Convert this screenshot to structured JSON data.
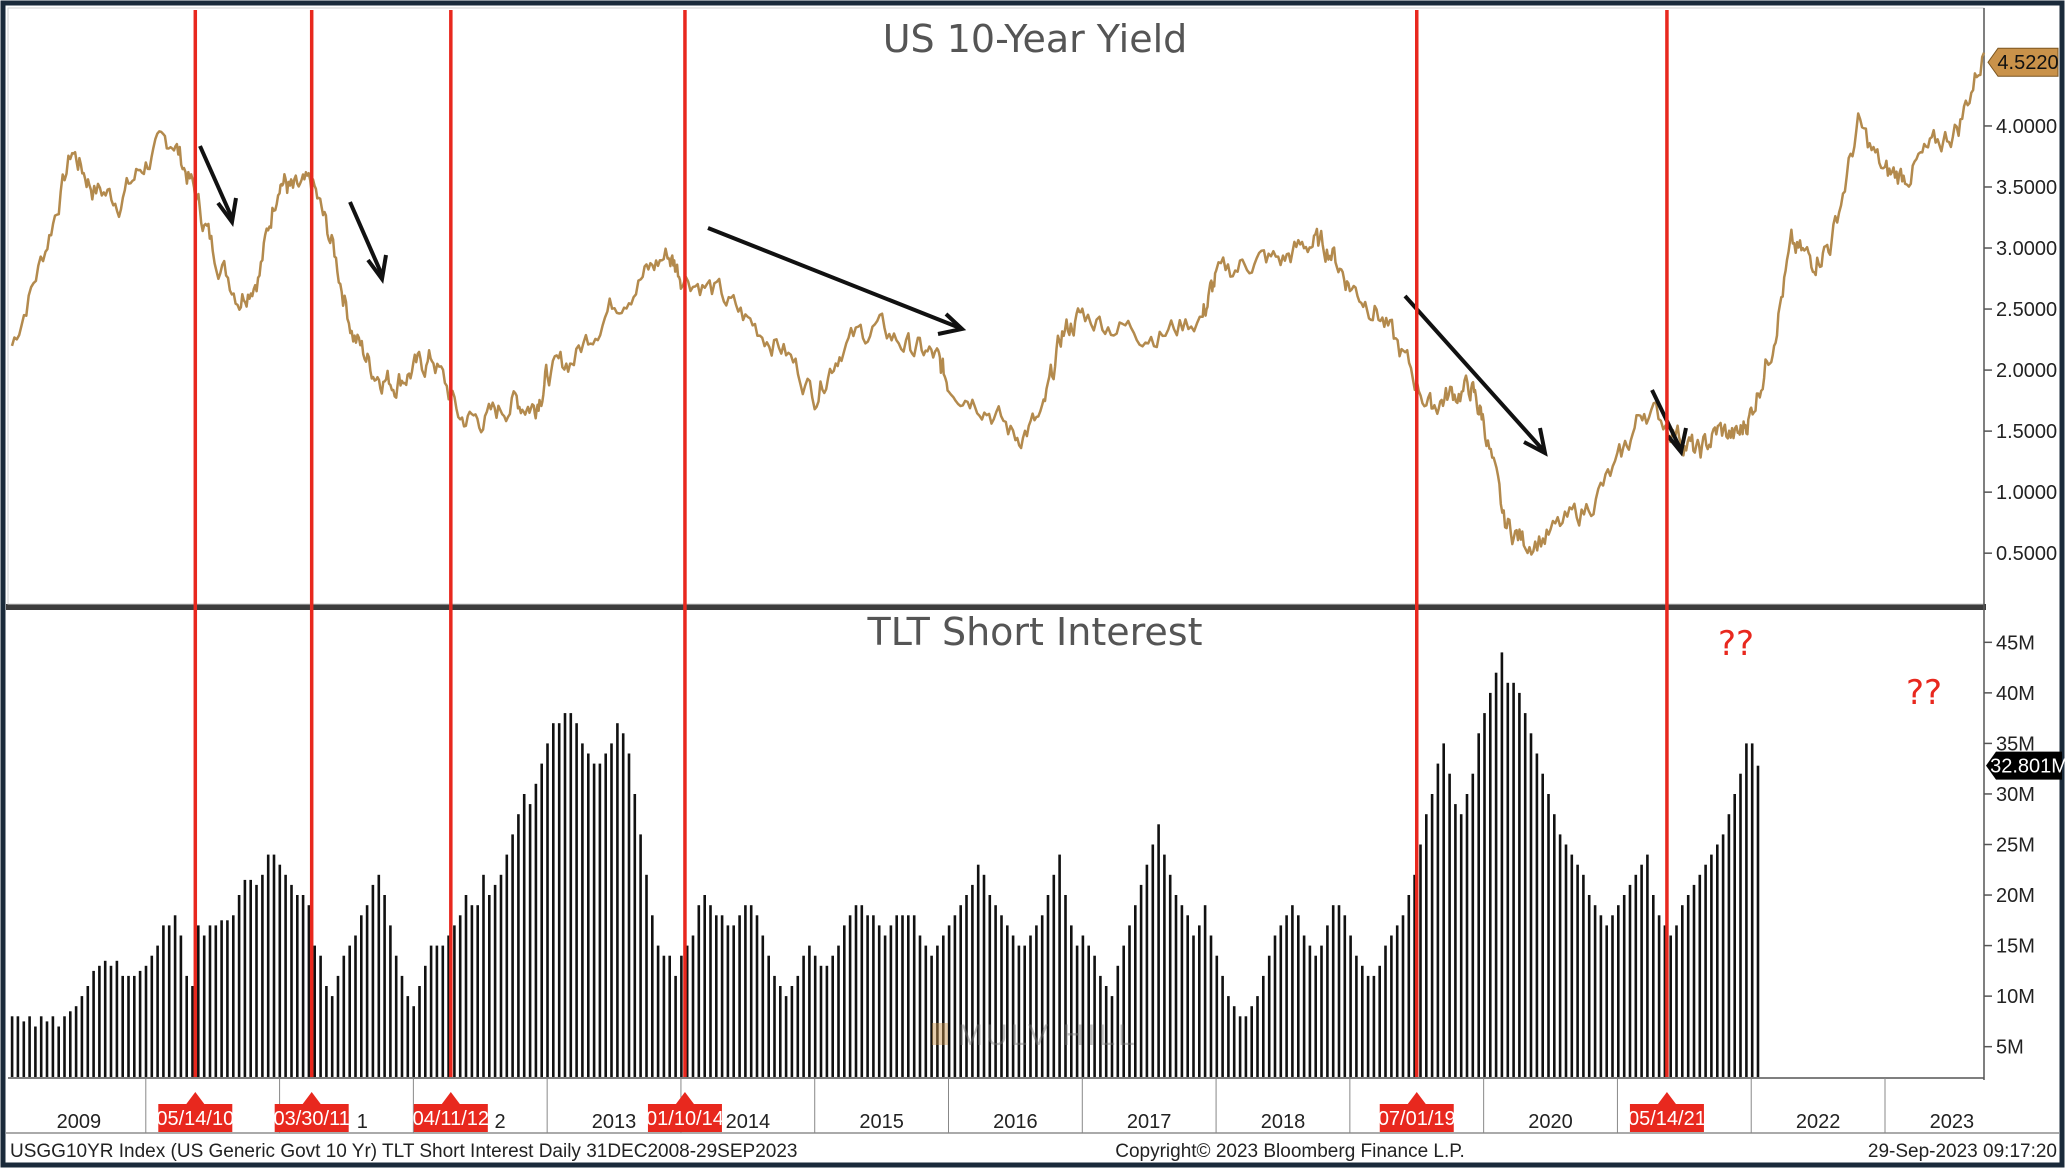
{
  "chart_data": [
    {
      "type": "line",
      "title": "US 10-Year Yield",
      "ylim": [
        0.1,
        4.95
      ],
      "yticks": [
        "4.0000",
        "3.5000",
        "3.0000",
        "2.5000",
        "2.0000",
        "1.5000",
        "1.0000",
        "0.5000"
      ],
      "yticks_values": [
        4.0,
        3.5,
        3.0,
        2.5,
        2.0,
        1.5,
        1.0,
        0.5
      ],
      "last_value_label": "4.5220",
      "last_value": 4.522,
      "color": "#b38a4d",
      "x": [
        2009.0,
        2009.25,
        2009.45,
        2009.6,
        2009.8,
        2010.0,
        2010.2,
        2010.35,
        2010.5,
        2010.7,
        2010.85,
        2011.0,
        2011.1,
        2011.25,
        2011.4,
        2011.55,
        2011.7,
        2011.85,
        2012.0,
        2012.15,
        2012.35,
        2012.55,
        2012.75,
        2012.9,
        2013.0,
        2013.2,
        2013.45,
        2013.7,
        2013.9,
        2014.0,
        2014.25,
        2014.5,
        2014.75,
        2015.0,
        2015.2,
        2015.45,
        2015.7,
        2015.9,
        2016.0,
        2016.25,
        2016.5,
        2016.7,
        2016.85,
        2017.0,
        2017.3,
        2017.6,
        2017.9,
        2018.0,
        2018.25,
        2018.5,
        2018.7,
        2018.85,
        2019.0,
        2019.2,
        2019.4,
        2019.6,
        2019.75,
        2019.9,
        2020.0,
        2020.15,
        2020.3,
        2020.5,
        2020.75,
        2021.0,
        2021.2,
        2021.45,
        2021.6,
        2021.75,
        2021.9,
        2022.0,
        2022.15,
        2022.3,
        2022.45,
        2022.6,
        2022.8,
        2023.0,
        2023.15,
        2023.35,
        2023.55,
        2023.74
      ],
      "y": [
        2.2,
        3.0,
        3.8,
        3.5,
        3.4,
        3.7,
        3.9,
        3.5,
        3.0,
        2.6,
        2.8,
        3.6,
        3.45,
        3.5,
        3.0,
        2.3,
        2.0,
        1.9,
        2.0,
        2.1,
        1.6,
        1.6,
        1.75,
        1.7,
        1.95,
        2.1,
        2.5,
        2.75,
        2.95,
        2.8,
        2.65,
        2.4,
        2.2,
        1.8,
        2.2,
        2.35,
        2.2,
        2.1,
        1.9,
        1.75,
        1.45,
        1.6,
        2.3,
        2.45,
        2.35,
        2.3,
        2.45,
        2.75,
        2.9,
        2.9,
        3.05,
        3.0,
        2.7,
        2.5,
        2.1,
        1.7,
        1.8,
        1.85,
        1.6,
        0.75,
        0.6,
        0.65,
        0.85,
        1.2,
        1.7,
        1.5,
        1.3,
        1.5,
        1.45,
        1.65,
        2.2,
        3.0,
        2.9,
        3.05,
        4.0,
        3.6,
        3.6,
        3.8,
        4.0,
        4.6
      ]
    },
    {
      "type": "bar",
      "title": "TLT Short Interest",
      "ylim": [
        2,
        48
      ],
      "yticks": [
        "45M",
        "40M",
        "35M",
        "30M",
        "25M",
        "20M",
        "15M",
        "10M",
        "5M"
      ],
      "yticks_values": [
        45,
        40,
        35,
        30,
        25,
        20,
        15,
        10,
        5
      ],
      "last_value_label": "32.801M",
      "last_value": 32.801,
      "color": "#111111",
      "x_start": 2009.0,
      "x_step": 0.0435,
      "values": [
        8,
        8,
        7.5,
        8,
        7,
        8,
        7.5,
        8,
        7,
        8,
        8.5,
        9,
        10,
        11,
        12.5,
        13,
        13.5,
        13,
        13.5,
        12,
        12,
        12,
        12.5,
        13,
        14,
        15,
        17,
        17,
        18,
        16,
        12,
        11,
        17,
        16,
        17,
        17,
        17.5,
        17.5,
        18,
        20,
        21.5,
        21.5,
        21,
        22,
        24,
        24,
        23,
        22,
        21,
        20,
        20,
        19,
        15,
        14,
        11,
        10,
        12,
        14,
        15,
        16,
        18,
        19,
        21,
        22,
        20,
        17,
        14,
        12,
        10,
        9,
        11,
        13,
        15,
        15,
        15,
        16,
        17,
        18,
        20,
        19,
        19,
        22,
        20,
        21,
        22,
        24,
        26,
        28,
        30,
        29,
        31,
        33,
        35,
        37,
        37,
        38,
        38,
        37,
        35,
        34,
        33,
        33,
        34,
        35,
        37,
        36,
        34,
        30,
        26,
        22,
        18,
        15,
        14,
        14,
        12,
        14,
        15,
        16,
        19,
        20,
        19,
        18,
        18,
        17,
        17,
        18,
        19,
        19,
        18,
        16,
        14,
        12,
        11,
        10,
        11,
        12,
        14,
        15,
        14,
        13,
        13,
        14,
        15,
        17,
        18,
        19,
        19,
        18,
        18,
        17,
        16,
        17,
        18,
        18,
        18,
        18,
        16,
        15,
        14,
        15,
        16,
        17,
        18,
        19,
        20,
        21,
        23,
        22,
        20,
        19,
        18,
        17,
        16,
        15,
        15,
        16,
        17,
        18,
        20,
        22,
        24,
        20,
        17,
        15,
        16,
        15,
        14,
        12,
        11,
        10,
        13,
        15,
        17,
        19,
        21,
        23,
        25,
        27,
        24,
        22,
        20,
        19,
        18,
        16,
        17,
        19,
        16,
        14,
        12,
        10,
        9,
        8,
        8,
        9,
        10,
        12,
        14,
        16,
        17,
        18,
        19,
        18,
        16,
        15,
        14,
        15,
        17,
        19,
        19,
        18,
        16,
        14,
        13,
        12,
        12,
        13,
        15,
        16,
        17,
        18,
        20,
        22,
        25,
        28,
        30,
        33,
        35,
        32,
        29,
        28,
        30,
        32,
        36,
        38,
        40,
        42,
        44,
        41,
        41,
        40,
        38,
        36,
        34,
        32,
        30,
        28,
        26,
        25,
        24,
        23,
        22,
        20,
        19,
        18,
        17,
        18,
        19,
        20,
        21,
        22,
        23,
        24,
        20,
        18,
        17,
        16,
        17,
        19,
        20,
        21,
        22,
        23,
        24,
        25,
        26,
        28,
        30,
        32,
        35,
        35,
        32.8
      ]
    }
  ],
  "x_axis": {
    "range": [
      2008.97,
      2023.74
    ],
    "year_labels": [
      {
        "label": "2009",
        "x": 2009.5
      },
      {
        "label": "2013",
        "x": 2013.5
      },
      {
        "label": "2014",
        "x": 2014.5
      },
      {
        "label": "2015",
        "x": 2015.5
      },
      {
        "label": "2016",
        "x": 2016.5
      },
      {
        "label": "2017",
        "x": 2017.5
      },
      {
        "label": "2018",
        "x": 2018.5
      },
      {
        "label": "2020",
        "x": 2020.5
      },
      {
        "label": "2022",
        "x": 2022.5
      },
      {
        "label": "2023",
        "x": 2023.5
      }
    ],
    "partial_labels": [
      {
        "label": "1",
        "x": 2011.27
      },
      {
        "label": "2",
        "x": 2012.3
      }
    ],
    "year_dividers": [
      2010,
      2011,
      2012,
      2013,
      2014,
      2015,
      2016,
      2017,
      2018,
      2019,
      2020,
      2021,
      2022,
      2023
    ]
  },
  "event_markers": [
    {
      "label": "05/14/10",
      "x": 2010.37
    },
    {
      "label": "03/30/11",
      "x": 2011.24
    },
    {
      "label": "04/11/12",
      "x": 2012.28
    },
    {
      "label": "01/10/14",
      "x": 2014.03
    },
    {
      "label": "07/01/19",
      "x": 2019.5
    },
    {
      "label": "05/14/21",
      "x": 2021.37
    }
  ],
  "annotations": {
    "question_marks_1": "??",
    "question_marks_2": "??",
    "watermark": "MULV HILL"
  },
  "footer": {
    "left": "USGG10YR Index (US Generic Govt 10 Yr) TLT Short Interest  Daily 31DEC2008-29SEP2023",
    "center": "Copyright© 2023 Bloomberg Finance L.P.",
    "right": "29-Sep-2023 09:17:20"
  },
  "colors": {
    "yield_line": "#b38a4d",
    "event_line": "#e8281e",
    "badge": "#e8281e",
    "frame": "#1a2a3a",
    "last_value_badge_yield": "#c9924a",
    "last_value_badge_si": "#000000"
  }
}
